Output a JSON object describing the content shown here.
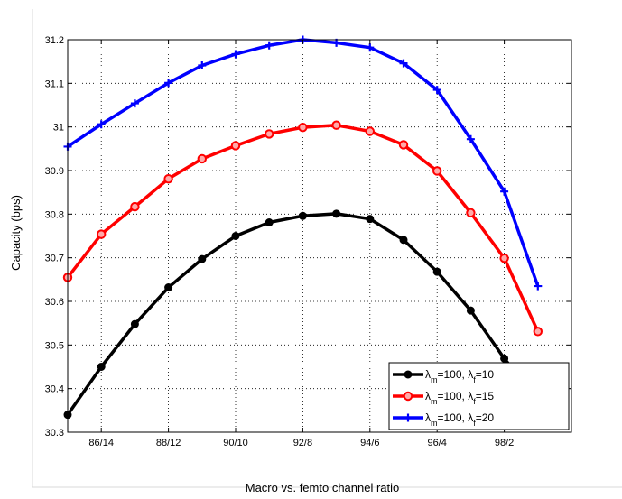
{
  "chart_data": {
    "type": "line",
    "title": "",
    "xlabel": "Macro vs. femto channel ratio",
    "ylabel": "Capacity (bps)",
    "xlim": [
      85,
      100
    ],
    "ylim": [
      30.3,
      31.2
    ],
    "grid": true,
    "legend_position": "bottom-right",
    "x_ticks": [
      86,
      88,
      90,
      92,
      94,
      96,
      98
    ],
    "x_tick_labels": [
      "86/14",
      "88/12",
      "90/10",
      "92/8",
      "94/6",
      "96/4",
      "98/2"
    ],
    "y_ticks": [
      30.3,
      30.4,
      30.5,
      30.6,
      30.7,
      30.8,
      30.9,
      31,
      31.1,
      31.2
    ],
    "y_tick_labels": [
      "30.3",
      "30.4",
      "30.5",
      "30.6",
      "30.7",
      "30.8",
      "30.9",
      "31",
      "31.1",
      "31.2"
    ],
    "x": [
      85,
      86,
      87,
      88,
      89,
      90,
      91,
      92,
      93,
      94,
      95,
      96,
      97,
      98,
      99
    ],
    "series": [
      {
        "legend_parts": [
          "λ",
          "m",
          "=100, λ",
          "f",
          "=10"
        ],
        "color": "#000000",
        "marker": "dot",
        "values": [
          30.34,
          30.45,
          30.548,
          30.632,
          30.697,
          30.75,
          30.781,
          30.796,
          30.801,
          30.789,
          30.741,
          30.668,
          30.579,
          30.469,
          30.375
        ]
      },
      {
        "legend_parts": [
          "λ",
          "m",
          "=100, λ",
          "f",
          "=15"
        ],
        "color": "#ff0000",
        "marker": "circle",
        "values": [
          30.655,
          30.754,
          30.817,
          30.881,
          30.927,
          30.957,
          30.984,
          30.999,
          31.004,
          30.99,
          30.959,
          30.899,
          30.803,
          30.699,
          30.531
        ]
      },
      {
        "legend_parts": [
          "λ",
          "m",
          "=100, λ",
          "f",
          "=20"
        ],
        "color": "#0000ff",
        "marker": "plus",
        "values": [
          30.955,
          31.006,
          31.054,
          31.101,
          31.141,
          31.167,
          31.187,
          31.2,
          31.193,
          31.182,
          31.146,
          31.085,
          30.972,
          30.852,
          30.635
        ]
      }
    ]
  }
}
